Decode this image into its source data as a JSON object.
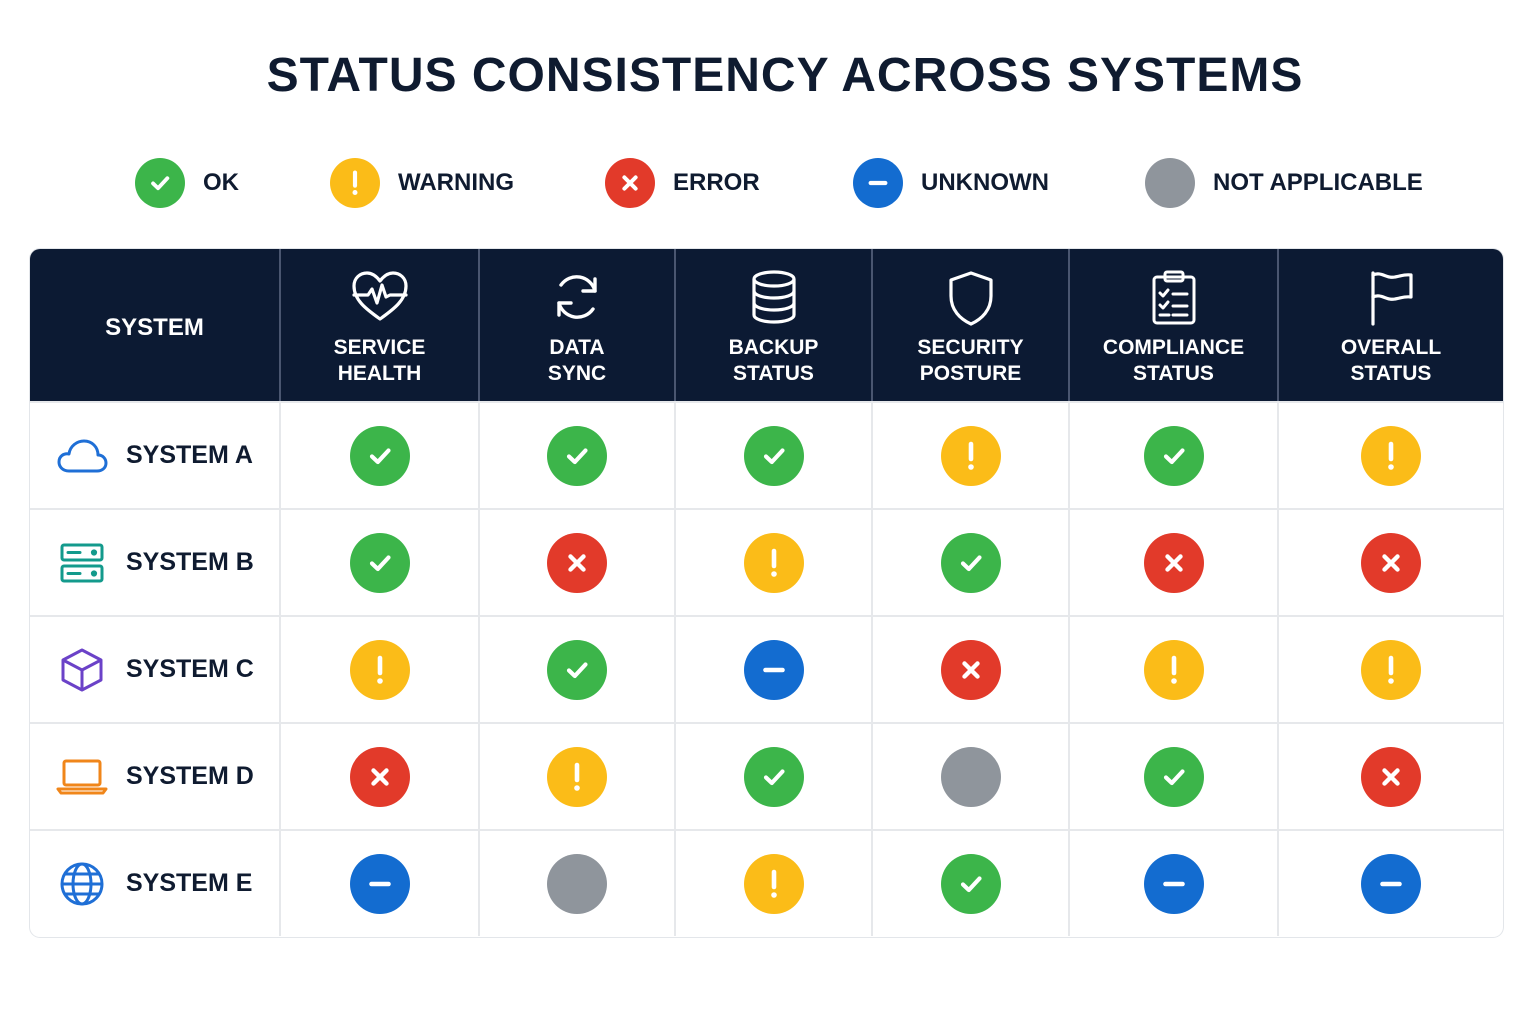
{
  "title": "STATUS CONSISTENCY ACROSS SYSTEMS",
  "legend": [
    {
      "key": "ok",
      "label": "OK",
      "icon": "check-icon",
      "color": "#3cb54a"
    },
    {
      "key": "warning",
      "label": "WARNING",
      "icon": "exclamation-icon",
      "color": "#fbbc18"
    },
    {
      "key": "error",
      "label": "ERROR",
      "icon": "cross-icon",
      "color": "#e23a2a"
    },
    {
      "key": "unknown",
      "label": "UNKNOWN",
      "icon": "minus-icon",
      "color": "#136cd0"
    },
    {
      "key": "na",
      "label": "NOT APPLICABLE",
      "icon": "",
      "color": "#8f959c"
    }
  ],
  "header": {
    "system_label": "SYSTEM",
    "columns": [
      {
        "key": "service_health",
        "label": "SERVICE\nHEALTH",
        "icon": "heart-pulse-icon"
      },
      {
        "key": "data_sync",
        "label": "DATA\nSYNC",
        "icon": "sync-icon"
      },
      {
        "key": "backup_status",
        "label": "BACKUP\nSTATUS",
        "icon": "database-icon"
      },
      {
        "key": "security_posture",
        "label": "SECURITY\nPOSTURE",
        "icon": "shield-icon"
      },
      {
        "key": "compliance_status",
        "label": "COMPLIANCE\nSTATUS",
        "icon": "clipboard-check-icon"
      },
      {
        "key": "overall_status",
        "label": "OVERALL\nSTATUS",
        "icon": "flag-icon"
      }
    ]
  },
  "rows": [
    {
      "name": "SYSTEM A",
      "icon": "cloud-icon",
      "icon_color": "#1f6fd6",
      "statuses": [
        "ok",
        "ok",
        "ok",
        "warning",
        "ok",
        "warning"
      ]
    },
    {
      "name": "SYSTEM B",
      "icon": "server-icon",
      "icon_color": "#139a8c",
      "statuses": [
        "ok",
        "error",
        "warning",
        "ok",
        "error",
        "error"
      ]
    },
    {
      "name": "SYSTEM C",
      "icon": "cube-icon",
      "icon_color": "#6b42c8",
      "statuses": [
        "warning",
        "ok",
        "unknown",
        "error",
        "warning",
        "warning"
      ]
    },
    {
      "name": "SYSTEM D",
      "icon": "laptop-icon",
      "icon_color": "#f0861a",
      "statuses": [
        "error",
        "warning",
        "ok",
        "na",
        "ok",
        "error"
      ]
    },
    {
      "name": "SYSTEM E",
      "icon": "globe-icon",
      "icon_color": "#1f6fd6",
      "statuses": [
        "unknown",
        "na",
        "warning",
        "ok",
        "unknown",
        "unknown"
      ]
    }
  ]
}
